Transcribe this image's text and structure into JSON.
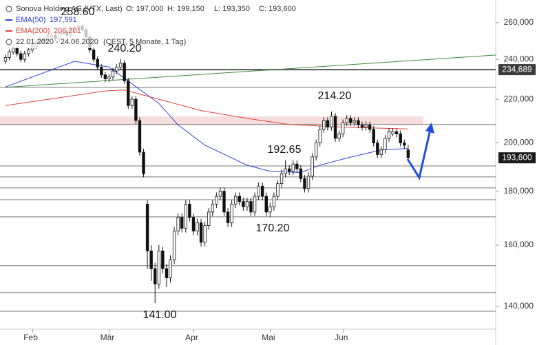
{
  "chart_data": {
    "type": "candlestick",
    "title": "Sonova Holding AG (VTX, Last)",
    "ohlc_labels": [
      "O: 197,000",
      "H: 199,150",
      "L: 193,350",
      "C: 193,600"
    ],
    "date_range": "22.01.2020 - 24.06.2020",
    "date_note": "(CEST, 5 Monate, 1 Tag)",
    "log_scale": true,
    "ylim": [
      133.2,
      273.2
    ],
    "yticks": [
      {
        "value": 140,
        "label": "140,000"
      },
      {
        "value": 160,
        "label": "160,000"
      },
      {
        "value": 180,
        "label": "180,000"
      },
      {
        "value": 200,
        "label": "200,000"
      },
      {
        "value": 220,
        "label": "220,000"
      },
      {
        "value": 240,
        "label": "240,000"
      },
      {
        "value": 260,
        "label": "260,000"
      }
    ],
    "categories": [
      null,
      null,
      null,
      null,
      null,
      null,
      null,
      null,
      "Feb",
      null,
      null,
      null,
      null,
      null,
      null,
      null,
      null,
      null,
      null,
      null,
      null,
      null,
      null,
      null,
      null,
      null,
      null,
      null,
      "Mär",
      null,
      null,
      null,
      null,
      null,
      null,
      null,
      null,
      null,
      null,
      null,
      null,
      null,
      null,
      null,
      null,
      null,
      null,
      null,
      null,
      null,
      "Apr",
      null,
      null,
      null,
      null,
      null,
      null,
      null,
      null,
      null,
      null,
      null,
      null,
      null,
      null,
      null,
      null,
      null,
      null,
      null,
      "Mai",
      null,
      null,
      null,
      null,
      null,
      null,
      null,
      null,
      null,
      null,
      null,
      null,
      null,
      null,
      null,
      null,
      null,
      null,
      "Jun",
      null,
      null,
      null,
      null,
      null,
      null,
      null,
      null,
      null,
      null,
      null,
      null,
      null,
      null,
      null,
      null
    ],
    "ohlc": [
      [
        239,
        242.5,
        237.5,
        241
      ],
      [
        241,
        245.5,
        239.5,
        244
      ],
      [
        244,
        247.5,
        242.5,
        246
      ],
      [
        246,
        247.5,
        241.5,
        243
      ],
      [
        243,
        244.5,
        238.5,
        240
      ],
      [
        240,
        244.5,
        238.5,
        243
      ],
      [
        243,
        246.5,
        241.5,
        245
      ],
      [
        245,
        248.5,
        243.5,
        247
      ],
      [
        247,
        250.5,
        245.5,
        249
      ],
      [
        249,
        252.5,
        247.5,
        251
      ],
      [
        251,
        252.5,
        248.5,
        250
      ],
      [
        250,
        253.5,
        248.5,
        252
      ],
      [
        252,
        254.5,
        250.5,
        253
      ],
      [
        253,
        254.5,
        249.5,
        251
      ],
      [
        251,
        255.5,
        249.5,
        254
      ],
      [
        254,
        256.5,
        252.5,
        255
      ],
      [
        255,
        256.5,
        251.5,
        253
      ],
      [
        253,
        257.5,
        251.5,
        256
      ],
      [
        256,
        258.5,
        254.5,
        257
      ],
      [
        257,
        258.6,
        255.5,
        258
      ],
      [
        258,
        259.5,
        254.5,
        256
      ],
      [
        256,
        257.5,
        250.5,
        252
      ],
      [
        252,
        253.5,
        243.5,
        245
      ],
      [
        245,
        246.5,
        238.5,
        240
      ],
      [
        240,
        241.5,
        234.5,
        236
      ],
      [
        236,
        237.5,
        230.5,
        232
      ],
      [
        232,
        233.5,
        228.5,
        230
      ],
      [
        230,
        232.5,
        228.5,
        231
      ],
      [
        231,
        235.5,
        229.5,
        234
      ],
      [
        234,
        237.5,
        232.5,
        236
      ],
      [
        236,
        240.2,
        234.5,
        238
      ],
      [
        238,
        239.5,
        227.5,
        229
      ],
      [
        229,
        230.5,
        215.5,
        217
      ],
      [
        217,
        221.5,
        215.5,
        220
      ],
      [
        220,
        221.5,
        208.5,
        210
      ],
      [
        210,
        211.5,
        194.5,
        196
      ],
      [
        196,
        197.5,
        185.5,
        187
      ],
      [
        175,
        176.5,
        152,
        158
      ],
      [
        158,
        160,
        148,
        152
      ],
      [
        152,
        154,
        141,
        147
      ],
      [
        147,
        160,
        145.5,
        158
      ],
      [
        158,
        159.5,
        150.5,
        152
      ],
      [
        152,
        153.5,
        146,
        149
      ],
      [
        149,
        156.5,
        147.5,
        155
      ],
      [
        155,
        166.5,
        153.5,
        165
      ],
      [
        165,
        171.5,
        163.5,
        170
      ],
      [
        170,
        171.5,
        164.5,
        166
      ],
      [
        166,
        176.5,
        164.5,
        175
      ],
      [
        175,
        176.5,
        168.5,
        170
      ],
      [
        170,
        171.5,
        163.5,
        165
      ],
      [
        165,
        169.5,
        163.5,
        168
      ],
      [
        168,
        169.5,
        159.5,
        161
      ],
      [
        161,
        168.5,
        159.5,
        167
      ],
      [
        167,
        173.5,
        165.5,
        172
      ],
      [
        172,
        176.5,
        170.5,
        175
      ],
      [
        175,
        179.5,
        173.5,
        178
      ],
      [
        178,
        181.5,
        176.5,
        180
      ],
      [
        180,
        181.5,
        170.5,
        172
      ],
      [
        172,
        173.5,
        166.5,
        168
      ],
      [
        168,
        176.5,
        166.5,
        175
      ],
      [
        175,
        179.5,
        173.5,
        178
      ],
      [
        178,
        179.5,
        174.5,
        176
      ],
      [
        176,
        177.5,
        172.5,
        174
      ],
      [
        174,
        177.5,
        172.5,
        176
      ],
      [
        176,
        177.5,
        170.5,
        172
      ],
      [
        172,
        179.5,
        170.5,
        178
      ],
      [
        178,
        183.5,
        176.5,
        182
      ],
      [
        182,
        183.5,
        176.5,
        178
      ],
      [
        178,
        179.5,
        170.5,
        172
      ],
      [
        172,
        175.5,
        170.2,
        174
      ],
      [
        174,
        179.5,
        172.5,
        178
      ],
      [
        178,
        184.5,
        176.5,
        183
      ],
      [
        183,
        188.5,
        181.5,
        187
      ],
      [
        187,
        192.65,
        185.5,
        189
      ],
      [
        189,
        190.5,
        186.5,
        188
      ],
      [
        188,
        192.5,
        186.5,
        191
      ],
      [
        191,
        192.5,
        187.5,
        189
      ],
      [
        189,
        190.5,
        183.5,
        185
      ],
      [
        185,
        186.5,
        179.5,
        181
      ],
      [
        181,
        187.5,
        179.5,
        186
      ],
      [
        186,
        195.5,
        184.5,
        194
      ],
      [
        194,
        201.5,
        192.5,
        200
      ],
      [
        200,
        207.5,
        198.5,
        206
      ],
      [
        206,
        211.5,
        204.5,
        210
      ],
      [
        210,
        211.5,
        205.5,
        207
      ],
      [
        207,
        214.2,
        205.5,
        212
      ],
      [
        212,
        213.5,
        200.5,
        202
      ],
      [
        202,
        205.5,
        200.5,
        204
      ],
      [
        204,
        210.5,
        202.5,
        209
      ],
      [
        209,
        212.5,
        207.5,
        211
      ],
      [
        211,
        212.5,
        207.5,
        209
      ],
      [
        209,
        211.5,
        207.5,
        210
      ],
      [
        210,
        211.5,
        206.5,
        208
      ],
      [
        208,
        209.5,
        205.5,
        207
      ],
      [
        207,
        209.5,
        205.5,
        208
      ],
      [
        208,
        209.5,
        204.5,
        206
      ],
      [
        206,
        207.5,
        198.5,
        200
      ],
      [
        200,
        201.5,
        193.5,
        195
      ],
      [
        195,
        198.5,
        193.5,
        197
      ],
      [
        197,
        203.5,
        195.5,
        202
      ],
      [
        202,
        206.5,
        200.5,
        205
      ],
      [
        204,
        206.5,
        203,
        205
      ],
      [
        205,
        206.5,
        202.5,
        204
      ],
      [
        204,
        205.5,
        198.5,
        200
      ],
      [
        200,
        201.5,
        197.5,
        199
      ],
      [
        197,
        199.15,
        193.35,
        193.6
      ]
    ],
    "series": [
      {
        "name": "EMA(50)",
        "value_label": "197,591",
        "color": "#2a3fd6",
        "x": [
          0,
          18,
          27,
          40,
          45,
          52,
          63,
          69,
          77,
          82,
          89,
          98,
          105
        ],
        "values": [
          226,
          239,
          236,
          218,
          208,
          199,
          190.5,
          188,
          187.5,
          190.5,
          193.5,
          197,
          197.591
        ]
      },
      {
        "name": "EMA(200)",
        "value_label": "206,201",
        "color": "#e0413a",
        "x": [
          0,
          26,
          31,
          40,
          51,
          63,
          74,
          88,
          105
        ],
        "values": [
          217,
          224,
          224.5,
          220,
          214.6,
          211,
          208.2,
          207,
          206.201
        ]
      }
    ],
    "trendline": {
      "color": "#3a8a3a",
      "x": [
        0,
        128
      ],
      "values": [
        225.8,
        242.3
      ]
    },
    "levels": [
      234.689,
      225.8,
      208.2,
      190.2,
      185.7,
      181.3,
      176.7,
      170.2,
      153,
      144.3,
      138.5
    ],
    "zone": [
      208.2,
      211.9
    ],
    "price_tags": [
      {
        "value": 234.689,
        "label": "234,689"
      },
      {
        "value": 193.6,
        "label": "193,600"
      }
    ],
    "annotations": [
      "258.60",
      "240.20",
      "214.20",
      "192.65",
      "170.20",
      "141.00"
    ]
  }
}
